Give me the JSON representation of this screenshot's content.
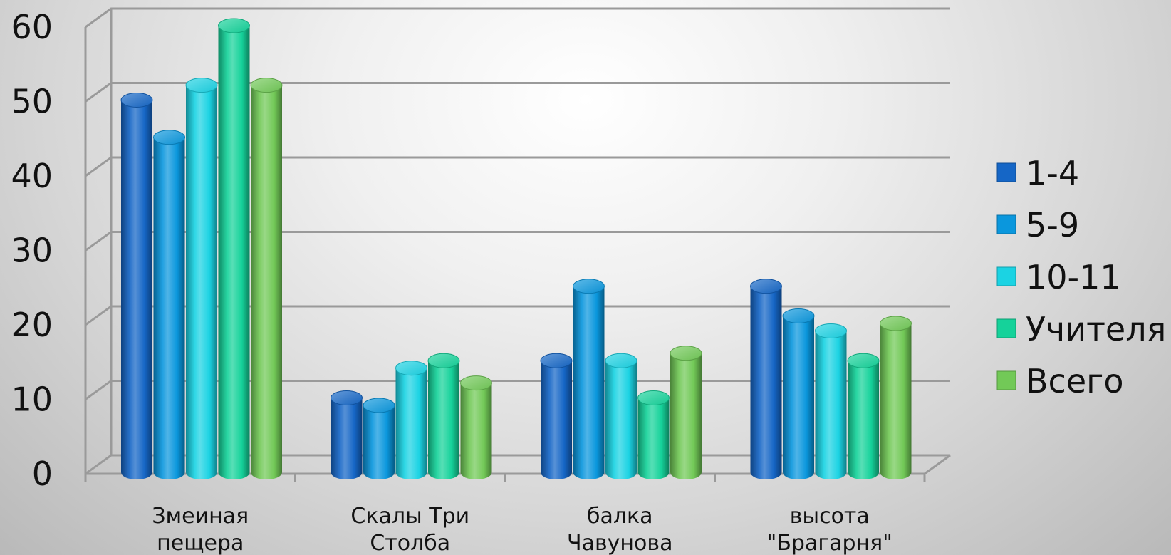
{
  "chart_data": {
    "type": "bar",
    "categories": [
      [
        "Змеиная",
        "пещера"
      ],
      [
        "Скалы Три",
        "Столба"
      ],
      [
        "балка",
        "Чавунова"
      ],
      [
        "высота",
        "\"Брагарня\""
      ]
    ],
    "series": [
      {
        "name": "1-4",
        "color": "#1566c6",
        "values": [
          50,
          10,
          15,
          25
        ]
      },
      {
        "name": "5-9",
        "color": "#0a97dd",
        "values": [
          45,
          9,
          25,
          21
        ]
      },
      {
        "name": "10-11",
        "color": "#1bd3e3",
        "values": [
          52,
          14,
          15,
          19
        ]
      },
      {
        "name": "Учителя",
        "color": "#15d29a",
        "values": [
          60,
          15,
          10,
          15
        ]
      },
      {
        "name": "Всего",
        "color": "#72c957",
        "values": [
          52,
          12,
          16,
          20
        ]
      }
    ],
    "ylim": [
      0,
      60
    ],
    "yticks": [
      0,
      10,
      20,
      30,
      40,
      50,
      60
    ],
    "grid": true,
    "legend_position": "right"
  }
}
